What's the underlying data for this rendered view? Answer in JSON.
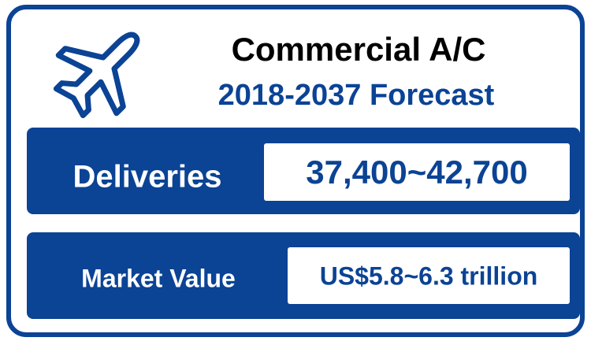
{
  "header": {
    "title": "Commercial A/C",
    "subtitle": "2018-2037 Forecast"
  },
  "rows": [
    {
      "label": "Deliveries",
      "value": "37,400~42,700"
    },
    {
      "label": "Market Value",
      "value": "US$5.8~6.3 trillion"
    }
  ]
}
